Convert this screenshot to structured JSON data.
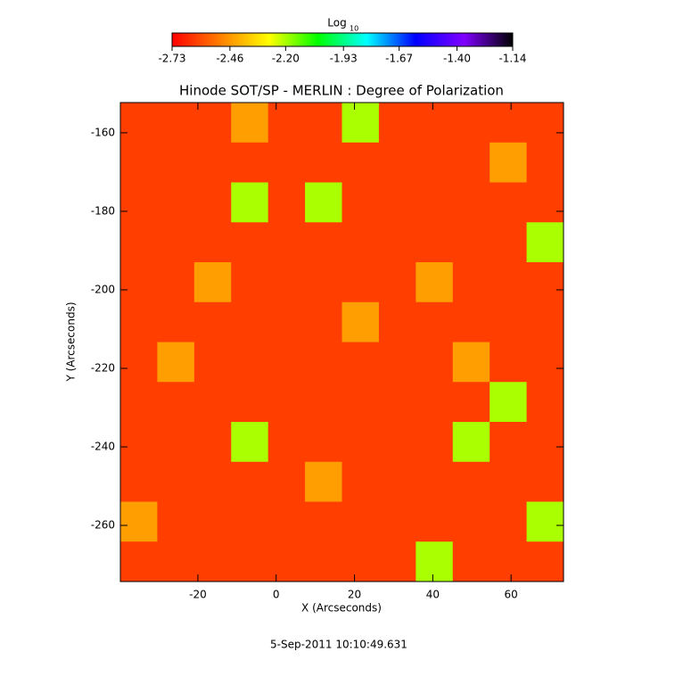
{
  "chart_data": {
    "type": "heatmap",
    "title": "Hinode SOT/SP - MERLIN : Degree of Polarization",
    "x_label": "X (Arcseconds)",
    "y_label": "Y (Arcseconds)",
    "footer": "5-Sep-2011 10:10:49.631",
    "colorbar_label": "Log",
    "colorbar_label_sub": "10",
    "colorbar_lim": [
      -2.73,
      -1.14
    ],
    "colorbar_ticks": [
      -2.73,
      -2.46,
      {
        "value": -2.2,
        "label": "-2.20"
      },
      -1.93,
      -1.67,
      {
        "value": -1.4,
        "label": "-1.40"
      },
      -1.14
    ],
    "colormap": [
      "#ff0000",
      "#ff8000",
      "#ffff00",
      "#00ff00",
      "#00ffff",
      "#0000ff",
      "#8000ff",
      "#000000"
    ],
    "xlim": [
      -39.8,
      73.4
    ],
    "ylim": [
      -274.3,
      -152.3
    ],
    "xticks": [
      -20,
      0,
      20,
      40,
      60
    ],
    "yticks": [
      -260,
      -240,
      -220,
      -200,
      -180,
      -160
    ],
    "z": [
      [
        -2.62,
        -2.62,
        -2.62,
        -2.45,
        -2.62,
        -2.62,
        -2.2,
        -2.62,
        -2.62,
        -2.62,
        -2.62,
        -2.62
      ],
      [
        -2.62,
        -2.62,
        -2.62,
        -2.62,
        -2.62,
        -2.62,
        -2.62,
        -2.62,
        -2.62,
        -2.62,
        -2.45,
        -2.62
      ],
      [
        -2.62,
        -2.62,
        -2.62,
        -2.2,
        -2.62,
        -2.2,
        -2.62,
        -2.62,
        -2.62,
        -2.62,
        -2.62,
        -2.62
      ],
      [
        -2.62,
        -2.62,
        -2.62,
        -2.62,
        -2.62,
        -2.62,
        -2.62,
        -2.62,
        -2.62,
        -2.62,
        -2.62,
        -2.2
      ],
      [
        -2.62,
        -2.62,
        -2.45,
        -2.62,
        -2.62,
        -2.62,
        -2.62,
        -2.62,
        -2.45,
        -2.62,
        -2.62,
        -2.62
      ],
      [
        -2.62,
        -2.62,
        -2.62,
        -2.62,
        -2.62,
        -2.62,
        -2.45,
        -2.62,
        -2.62,
        -2.62,
        -2.62,
        -2.62
      ],
      [
        -2.62,
        -2.45,
        -2.62,
        -2.62,
        -2.62,
        -2.62,
        -2.62,
        -2.62,
        -2.62,
        -2.45,
        -2.62,
        -2.62
      ],
      [
        -2.62,
        -2.62,
        -2.62,
        -2.62,
        -2.62,
        -2.62,
        -2.62,
        -2.62,
        -2.62,
        -2.62,
        -2.2,
        -2.62
      ],
      [
        -2.62,
        -2.62,
        -2.62,
        -2.2,
        -2.62,
        -2.62,
        -2.62,
        -2.62,
        -2.62,
        -2.2,
        -2.62,
        -2.62
      ],
      [
        -2.62,
        -2.62,
        -2.62,
        -2.62,
        -2.62,
        -2.45,
        -2.62,
        -2.62,
        -2.62,
        -2.62,
        -2.62,
        -2.62
      ],
      [
        -2.45,
        -2.62,
        -2.62,
        -2.62,
        -2.62,
        -2.62,
        -2.62,
        -2.62,
        -2.62,
        -2.62,
        -2.62,
        -2.2
      ],
      [
        -2.62,
        -2.62,
        -2.62,
        -2.62,
        -2.62,
        -2.62,
        -2.62,
        -2.62,
        -2.2,
        -2.62,
        -2.62,
        -2.62
      ]
    ]
  }
}
